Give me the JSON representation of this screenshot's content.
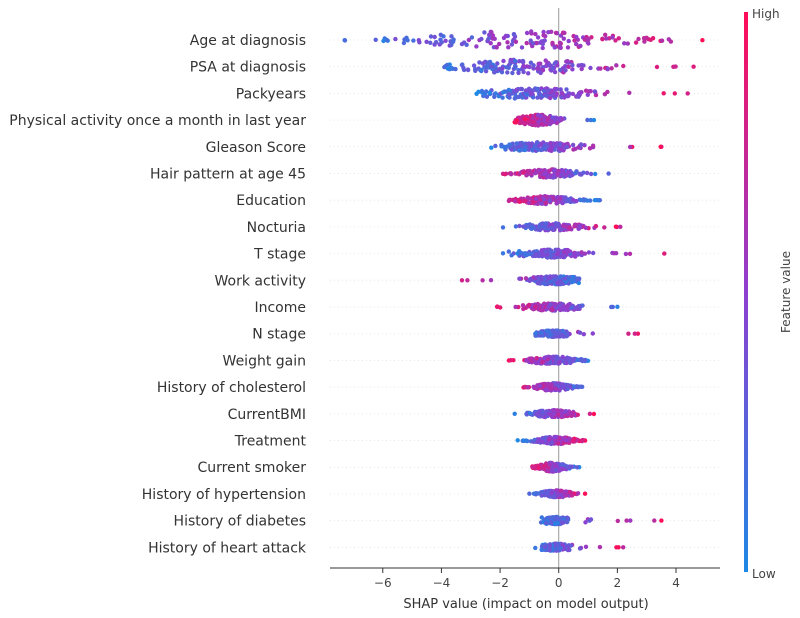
{
  "chart_data": {
    "type": "beeswarm",
    "xlabel": "SHAP value (impact on model output)",
    "xlim": [
      -7.8,
      5.5
    ],
    "xticks": [
      -6,
      -4,
      -2,
      0,
      2,
      4
    ],
    "xtick_labels": [
      "−6",
      "−4",
      "−2",
      "0",
      "2",
      "4"
    ],
    "colorbar": {
      "high_label": "High",
      "low_label": "Low",
      "title": "Feature value",
      "low_color": "#1e88e5",
      "high_color": "#ff0d57"
    },
    "features": [
      {
        "name": "Age at diagnosis",
        "min": -7.3,
        "max": 4.9,
        "median": -1.2,
        "spread": 2.3,
        "width": 1.0,
        "low_side": "left"
      },
      {
        "name": "PSA at diagnosis",
        "min": -3.9,
        "max": 4.6,
        "median": -1.0,
        "spread": 1.5,
        "width": 0.8,
        "low_side": "left"
      },
      {
        "name": "Packyears",
        "min": -2.8,
        "max": 4.4,
        "median": -0.9,
        "spread": 1.0,
        "width": 0.6,
        "low_side": "left"
      },
      {
        "name": "Physical activity once a month in last year",
        "min": -1.5,
        "max": 1.2,
        "median": -0.7,
        "spread": 0.4,
        "width": 0.6,
        "low_side": "right"
      },
      {
        "name": "Gleason Score",
        "min": -2.3,
        "max": 3.5,
        "median": -0.6,
        "spread": 0.6,
        "width": 0.5,
        "low_side": "left"
      },
      {
        "name": "Hair pattern at age 45",
        "min": -1.9,
        "max": 1.7,
        "median": -0.3,
        "spread": 0.6,
        "width": 0.45,
        "low_side": "right"
      },
      {
        "name": "Education",
        "min": -1.7,
        "max": 1.4,
        "median": -0.4,
        "spread": 0.6,
        "width": 0.45,
        "low_side": "right"
      },
      {
        "name": "Nocturia",
        "min": -1.9,
        "max": 2.1,
        "median": -0.2,
        "spread": 0.5,
        "width": 0.4,
        "low_side": "left"
      },
      {
        "name": "T stage",
        "min": -1.9,
        "max": 3.6,
        "median": -0.3,
        "spread": 0.6,
        "width": 0.45,
        "low_side": "left"
      },
      {
        "name": "Work activity",
        "min": -3.3,
        "max": 0.7,
        "median": -0.1,
        "spread": 0.5,
        "width": 0.45,
        "low_side": "right"
      },
      {
        "name": "Income",
        "min": -2.1,
        "max": 2.0,
        "median": -0.2,
        "spread": 0.5,
        "width": 0.4,
        "low_side": "right"
      },
      {
        "name": "N stage",
        "min": -0.8,
        "max": 2.7,
        "median": -0.1,
        "spread": 0.3,
        "width": 0.35,
        "low_side": "left"
      },
      {
        "name": "Weight gain",
        "min": -1.7,
        "max": 1.0,
        "median": -0.2,
        "spread": 0.5,
        "width": 0.45,
        "low_side": "right"
      },
      {
        "name": "History of cholesterol",
        "min": -1.2,
        "max": 0.8,
        "median": -0.2,
        "spread": 0.4,
        "width": 0.45,
        "low_side": "right"
      },
      {
        "name": "CurrentBMI",
        "min": -1.5,
        "max": 1.2,
        "median": -0.2,
        "spread": 0.4,
        "width": 0.4,
        "low_side": "left"
      },
      {
        "name": "Treatment",
        "min": -1.4,
        "max": 0.9,
        "median": -0.1,
        "spread": 0.4,
        "width": 0.4,
        "low_side": "left"
      },
      {
        "name": "Current smoker",
        "min": -0.9,
        "max": 0.7,
        "median": -0.2,
        "spread": 0.3,
        "width": 0.5,
        "low_side": "right"
      },
      {
        "name": "History of hypertension",
        "min": -1.0,
        "max": 0.9,
        "median": -0.1,
        "spread": 0.3,
        "width": 0.4,
        "low_side": "left"
      },
      {
        "name": "History of diabetes",
        "min": -0.6,
        "max": 3.5,
        "median": -0.1,
        "spread": 0.2,
        "width": 0.4,
        "low_side": "left"
      },
      {
        "name": "History of heart attack",
        "min": -0.8,
        "max": 2.2,
        "median": -0.1,
        "spread": 0.2,
        "width": 0.4,
        "low_side": "left"
      }
    ]
  }
}
